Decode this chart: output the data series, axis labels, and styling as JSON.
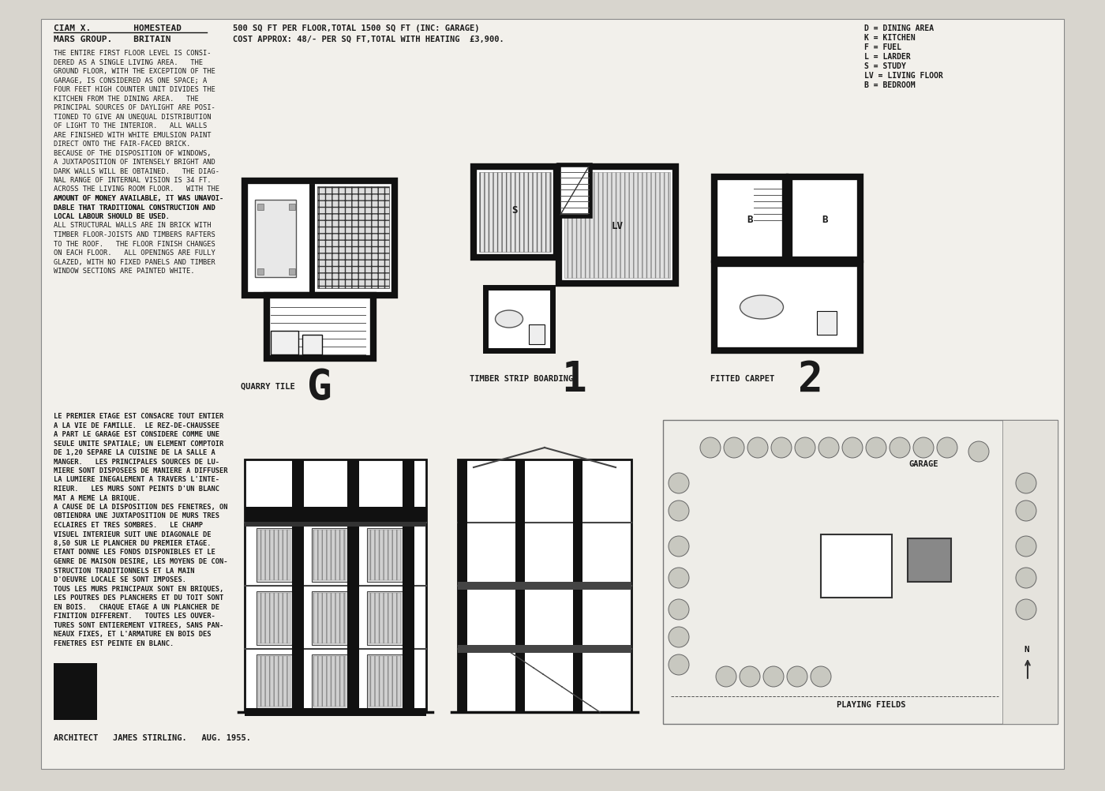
{
  "background_color": "#d8d5ce",
  "paper_color": "#f2f0eb",
  "title_line1": "CIAM X.        HOMESTEAD",
  "title_line2": "MARS GROUP.    BRITAIN",
  "header_center1": "500 SQ FT PER FLOOR,TOTAL 1500 SQ FT (INC: GARAGE)",
  "header_center2": "COST APPROX: 48/- PER SQ FT,TOTAL WITH HEATING  £3,900.",
  "legend": [
    "D = DINING AREA",
    "K = KITCHEN",
    "F = FUEL",
    "L = LARDER",
    "S = STUDY",
    "LV = LIVING FLOOR",
    "B = BEDROOM"
  ],
  "floor_labels": [
    "QUARRY TILE",
    "TIMBER STRIP BOARDING",
    "FITTED CARPET"
  ],
  "floor_numbers": [
    "G",
    "1",
    "2"
  ],
  "architect_line": "ARCHITECT   JAMES STIRLING.   AUG. 1955.",
  "text_color": "#1a1a1a",
  "line_color": "#111111",
  "wall_color": "#111111",
  "hatch_color": "#333333"
}
